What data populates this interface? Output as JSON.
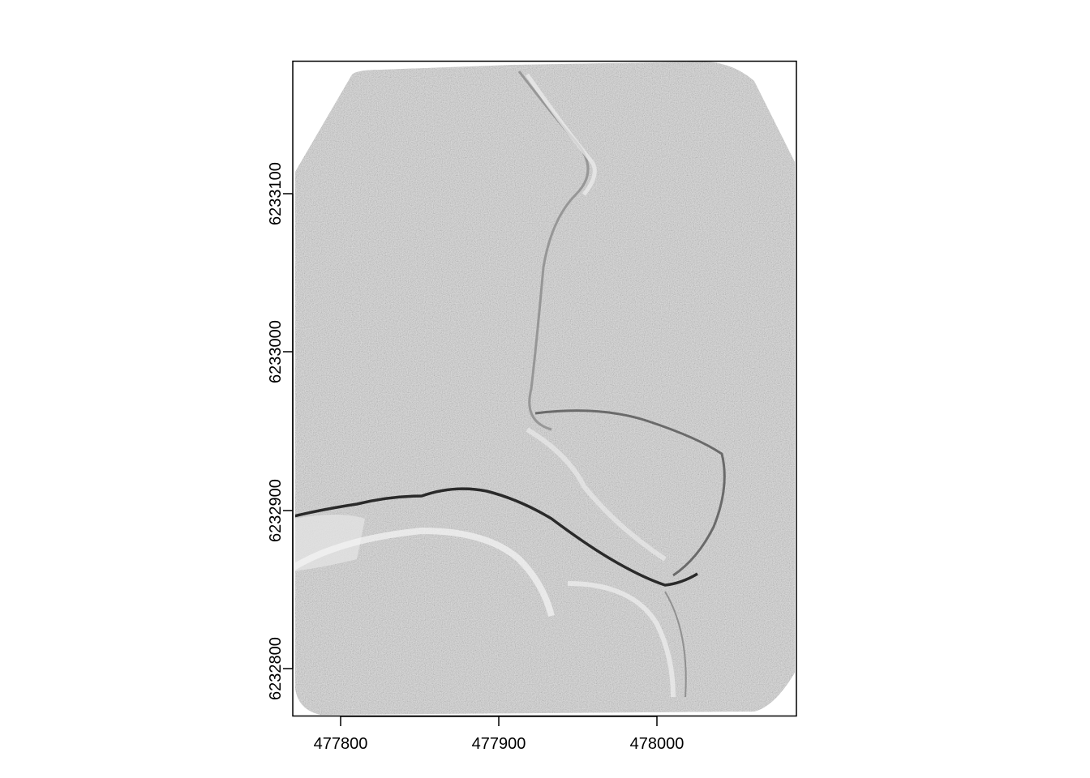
{
  "map": {
    "type": "hillshade raster",
    "x_axis": {
      "range": [
        477771,
        478090
      ],
      "ticks": [
        {
          "value": 477800,
          "label": "477800"
        },
        {
          "value": 477900,
          "label": "477900"
        },
        {
          "value": 478000,
          "label": "478000"
        }
      ]
    },
    "y_axis": {
      "range": [
        6232717,
        6233131
      ],
      "ticks": [
        {
          "value": 6232800,
          "label": "6232800"
        },
        {
          "value": 6232900,
          "label": "6232900"
        },
        {
          "value": 6233000,
          "label": "6233000"
        },
        {
          "value": 6233100,
          "label": "6233100"
        }
      ]
    }
  },
  "colors": {
    "background": "#ffffff",
    "raster_base": "#d4d4d4",
    "nodata": "#ffffff",
    "feature_dark": "#2a2a2a",
    "axis": "#000000"
  }
}
